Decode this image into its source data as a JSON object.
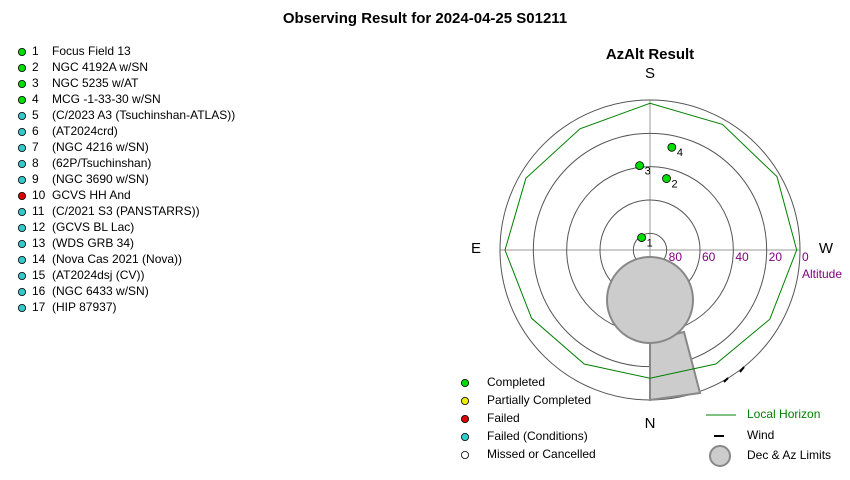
{
  "title": "Observing Result for 2024-04-25 S01211",
  "targets": [
    {
      "number": 1,
      "name": "Focus Field 13",
      "status": "Completed"
    },
    {
      "number": 2,
      "name": "NGC 4192A w/SN",
      "status": "Completed"
    },
    {
      "number": 3,
      "name": "NGC 5235 w/AT",
      "status": "Completed"
    },
    {
      "number": 4,
      "name": "MCG -1-33-30 w/SN",
      "status": "Completed"
    },
    {
      "number": 5,
      "name": "(C/2023 A3 (Tsuchinshan-ATLAS))",
      "status": "Failed (Conditions)"
    },
    {
      "number": 6,
      "name": "(AT2024crd)",
      "status": "Failed (Conditions)"
    },
    {
      "number": 7,
      "name": "(NGC 4216 w/SN)",
      "status": "Failed (Conditions)"
    },
    {
      "number": 8,
      "name": "(62P/Tsuchinshan)",
      "status": "Failed (Conditions)"
    },
    {
      "number": 9,
      "name": "(NGC 3690 w/SN)",
      "status": "Failed (Conditions)"
    },
    {
      "number": 10,
      "name": "GCVS HH And",
      "status": "Failed"
    },
    {
      "number": 11,
      "name": "(C/2021 S3 (PANSTARRS))",
      "status": "Failed (Conditions)"
    },
    {
      "number": 12,
      "name": "(GCVS BL Lac)",
      "status": "Failed (Conditions)"
    },
    {
      "number": 13,
      "name": "(WDS GRB 34)",
      "status": "Failed (Conditions)"
    },
    {
      "number": 14,
      "name": "(Nova Cas 2021 (Nova))",
      "status": "Failed (Conditions)"
    },
    {
      "number": 15,
      "name": "(AT2024dsj (CV))",
      "status": "Failed (Conditions)"
    },
    {
      "number": 16,
      "name": "(NGC 6433 w/SN)",
      "status": "Failed (Conditions)"
    },
    {
      "number": 17,
      "name": "(HIP 87937)",
      "status": "Failed (Conditions)"
    }
  ],
  "chart_data": {
    "type": "polar",
    "title": "AzAlt Result",
    "directions": {
      "south": "S",
      "east": "E",
      "west": "W",
      "north": "N"
    },
    "r_label": "Altitude",
    "rlim": [
      90,
      0
    ],
    "rticks": [
      80,
      60,
      40,
      20,
      0
    ],
    "points": [
      {
        "label": 1,
        "az": 146,
        "alt": 81,
        "status": "Completed"
      },
      {
        "label": 2,
        "az": 193,
        "alt": 46,
        "status": "Completed"
      },
      {
        "label": 3,
        "az": 173,
        "alt": 39,
        "status": "Completed"
      },
      {
        "label": 4,
        "az": 192,
        "alt": 27,
        "status": "Completed"
      }
    ],
    "horizon": {
      "name": "Local Horizon",
      "color": "#008000",
      "az": [
        0,
        30,
        60,
        90,
        120,
        150,
        180,
        210,
        240,
        270,
        300,
        330
      ],
      "alt": [
        13,
        11,
        8,
        3,
        4,
        6,
        2,
        3,
        2,
        2,
        7,
        11
      ]
    },
    "legend": {
      "statuses": [
        {
          "name": "Completed",
          "color": "#00dd00"
        },
        {
          "name": "Partially Completed",
          "color": "#eeee00"
        },
        {
          "name": "Failed",
          "color": "#dd0000"
        },
        {
          "name": "Failed (Conditions)",
          "color": "#33cccc"
        },
        {
          "name": "Missed or Cancelled",
          "color": "#ffffff"
        }
      ],
      "wind": "Wind",
      "limits": "Dec & Az Limits"
    }
  }
}
